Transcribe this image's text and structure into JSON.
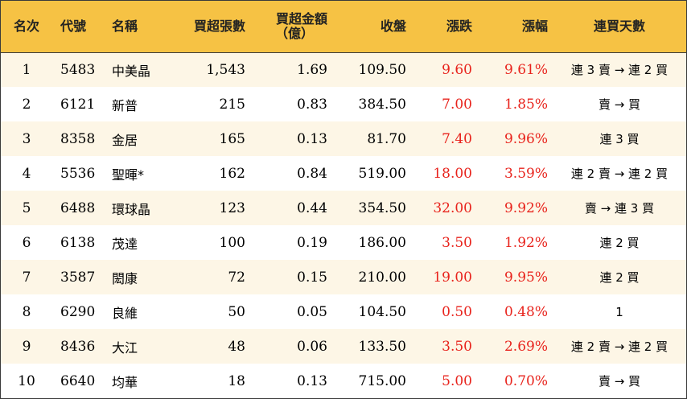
{
  "table": {
    "headers": {
      "rank": "名次",
      "code": "代號",
      "name": "名稱",
      "net_buy_lots": "買超張數",
      "net_buy_amount_line1": "買超金額",
      "net_buy_amount_line2": "（億）",
      "close": "收盤",
      "change": "漲跌",
      "change_pct": "漲幅",
      "consecutive_days": "連買天數"
    },
    "rows": [
      {
        "rank": "1",
        "code": "5483",
        "name": "中美晶",
        "net_buy_lots": "1,543",
        "net_buy_amount": "1.69",
        "close": "109.50",
        "change": "9.60",
        "change_pct": "9.61%",
        "consecutive_days": "連 3 賣 → 連 2 買"
      },
      {
        "rank": "2",
        "code": "6121",
        "name": "新普",
        "net_buy_lots": "215",
        "net_buy_amount": "0.83",
        "close": "384.50",
        "change": "7.00",
        "change_pct": "1.85%",
        "consecutive_days": "賣 → 買"
      },
      {
        "rank": "3",
        "code": "8358",
        "name": "金居",
        "net_buy_lots": "165",
        "net_buy_amount": "0.13",
        "close": "81.70",
        "change": "7.40",
        "change_pct": "9.96%",
        "consecutive_days": "連 3 買"
      },
      {
        "rank": "4",
        "code": "5536",
        "name": "聖暉*",
        "net_buy_lots": "162",
        "net_buy_amount": "0.84",
        "close": "519.00",
        "change": "18.00",
        "change_pct": "3.59%",
        "consecutive_days": "連 2 賣 → 連 2 買"
      },
      {
        "rank": "5",
        "code": "6488",
        "name": "環球晶",
        "net_buy_lots": "123",
        "net_buy_amount": "0.44",
        "close": "354.50",
        "change": "32.00",
        "change_pct": "9.92%",
        "consecutive_days": "賣 → 連 3 買"
      },
      {
        "rank": "6",
        "code": "6138",
        "name": "茂達",
        "net_buy_lots": "100",
        "net_buy_amount": "0.19",
        "close": "186.00",
        "change": "3.50",
        "change_pct": "1.92%",
        "consecutive_days": "連 2 買"
      },
      {
        "rank": "7",
        "code": "3587",
        "name": "閎康",
        "net_buy_lots": "72",
        "net_buy_amount": "0.15",
        "close": "210.00",
        "change": "19.00",
        "change_pct": "9.95%",
        "consecutive_days": "連 2 買"
      },
      {
        "rank": "8",
        "code": "6290",
        "name": "良維",
        "net_buy_lots": "50",
        "net_buy_amount": "0.05",
        "close": "104.50",
        "change": "0.50",
        "change_pct": "0.48%",
        "consecutive_days": "1"
      },
      {
        "rank": "9",
        "code": "8436",
        "name": "大江",
        "net_buy_lots": "48",
        "net_buy_amount": "0.06",
        "close": "133.50",
        "change": "3.50",
        "change_pct": "2.69%",
        "consecutive_days": "連 2 賣 → 連 2 買"
      },
      {
        "rank": "10",
        "code": "6640",
        "name": "均華",
        "net_buy_lots": "18",
        "net_buy_amount": "0.13",
        "close": "715.00",
        "change": "5.00",
        "change_pct": "0.70%",
        "consecutive_days": "賣 → 買"
      }
    ]
  },
  "colors": {
    "header_bg": "#f6c244",
    "odd_row_bg": "#fdf6e6",
    "even_row_bg": "#ffffff",
    "positive_change": "#e8231c"
  }
}
